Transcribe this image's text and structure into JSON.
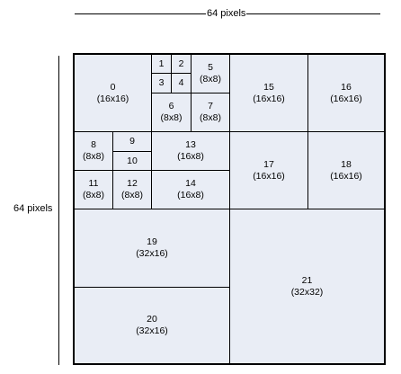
{
  "top_dimension": {
    "label": "64 pixels"
  },
  "left_dimension": {
    "label": "64 pixels"
  },
  "blocks": {
    "b0": {
      "num": "0",
      "size": "(16x16)"
    },
    "b1": {
      "num": "1",
      "size": ""
    },
    "b2": {
      "num": "2",
      "size": ""
    },
    "b3": {
      "num": "3",
      "size": ""
    },
    "b4": {
      "num": "4",
      "size": ""
    },
    "b5": {
      "num": "5",
      "size": "(8x8)"
    },
    "b6": {
      "num": "6",
      "size": "(8x8)"
    },
    "b7": {
      "num": "7",
      "size": "(8x8)"
    },
    "b8": {
      "num": "8",
      "size": "(8x8)"
    },
    "b9": {
      "num": "9",
      "size": ""
    },
    "b10": {
      "num": "10",
      "size": ""
    },
    "b11": {
      "num": "11",
      "size": "(8x8)"
    },
    "b12": {
      "num": "12",
      "size": "(8x8)"
    },
    "b13": {
      "num": "13",
      "size": "(16x8)"
    },
    "b14": {
      "num": "14",
      "size": "(16x8)"
    },
    "b15": {
      "num": "15",
      "size": "(16x16)"
    },
    "b16": {
      "num": "16",
      "size": "(16x16)"
    },
    "b17": {
      "num": "17",
      "size": "(16x16)"
    },
    "b18": {
      "num": "18",
      "size": "(16x16)"
    },
    "b19": {
      "num": "19",
      "size": "(32x16)"
    },
    "b20": {
      "num": "20",
      "size": "(32x16)"
    },
    "b21": {
      "num": "21",
      "size": "(32x32)"
    }
  }
}
